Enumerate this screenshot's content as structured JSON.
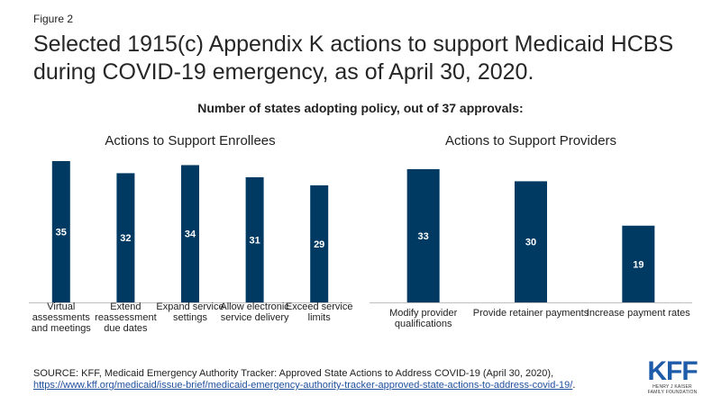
{
  "figure_label": "Figure 2",
  "title_line1": "Selected 1915(c) Appendix K actions to support Medicaid HCBS",
  "title_line2": "during COVID-19 emergency, as of April 30, 2020.",
  "subtitle": "Number of states adopting policy, out of 37 approvals:",
  "source": {
    "text": "SOURCE: KFF, Medicaid Emergency Authority Tracker: Approved State Actions to Address COVID-19 (April 30, 2020),",
    "link": "https://www.kff.org/medicaid/issue-brief/medicaid-emergency-authority-tracker-approved-state-actions-to-address-covid-19/",
    "link_suffix": "."
  },
  "logo": {
    "mark": "KFF",
    "line1": "HENRY J KAISER",
    "line2": "FAMILY FOUNDATION"
  },
  "colors": {
    "bar": "#003a63",
    "value_text": "#ffffff",
    "axis": "#bfbfbf"
  },
  "chart_data": [
    {
      "type": "bar",
      "title": "Actions to Support Enrollees",
      "categories": [
        [
          "Virtual",
          "assessments",
          "and meetings"
        ],
        [
          "Extend",
          "reassessment",
          "due dates"
        ],
        [
          "Expand service",
          "settings"
        ],
        [
          "Allow electronic",
          "service delivery"
        ],
        [
          "Exceed service",
          "limits"
        ]
      ],
      "values": [
        35,
        32,
        34,
        31,
        29
      ],
      "ylim": [
        0,
        37
      ]
    },
    {
      "type": "bar",
      "title": "Actions to Support Providers",
      "categories": [
        [
          "Modify provider",
          "qualifications"
        ],
        [
          "Provide retainer payments"
        ],
        [
          "Increase payment rates"
        ]
      ],
      "values": [
        33,
        30,
        19
      ],
      "ylim": [
        0,
        37
      ]
    }
  ]
}
